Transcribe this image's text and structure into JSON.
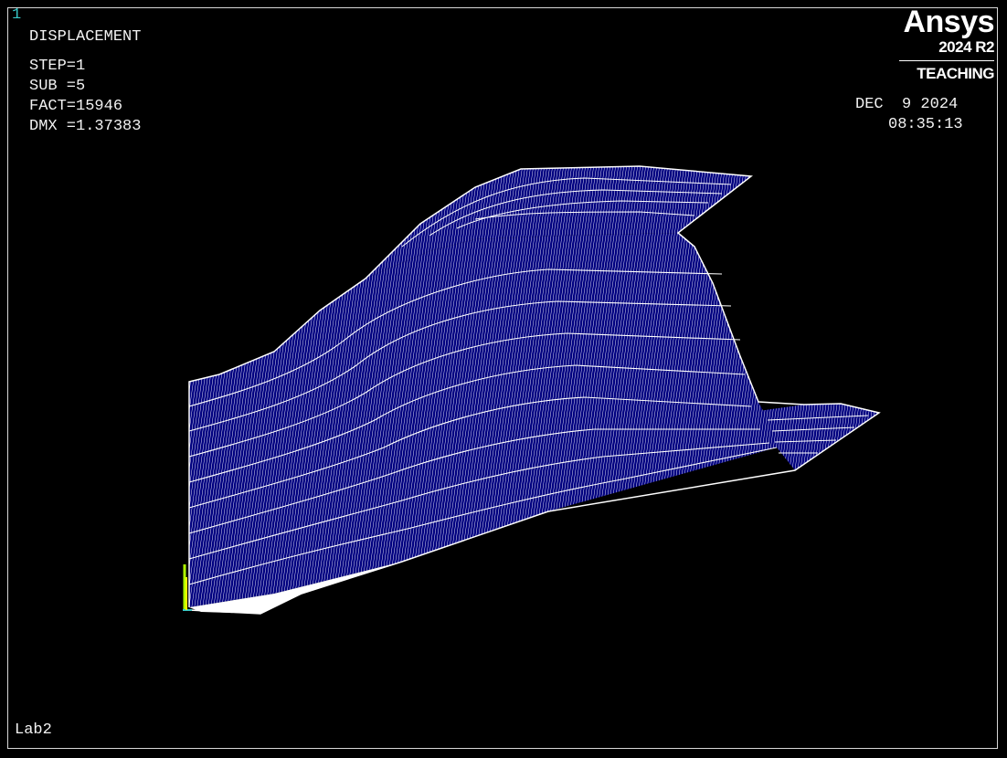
{
  "window": {
    "number": "1"
  },
  "result": {
    "title": "DISPLACEMENT",
    "step": "STEP=1",
    "sub": "SUB =5",
    "fact": "FACT=15946",
    "dmx": "DMX =1.37383"
  },
  "logo": {
    "brand": "Ansys",
    "version": "2024 R2",
    "edition": "TEACHING"
  },
  "date": {
    "date": "DEC  9 2024",
    "time": "08:35:13"
  },
  "footer": {
    "job": "Lab2"
  },
  "colors": {
    "background": "#000000",
    "mesh_fill": "#000080",
    "mesh_lines": "#ffffff",
    "window_number": "#36c7c7",
    "triad": "#b0ff00"
  }
}
